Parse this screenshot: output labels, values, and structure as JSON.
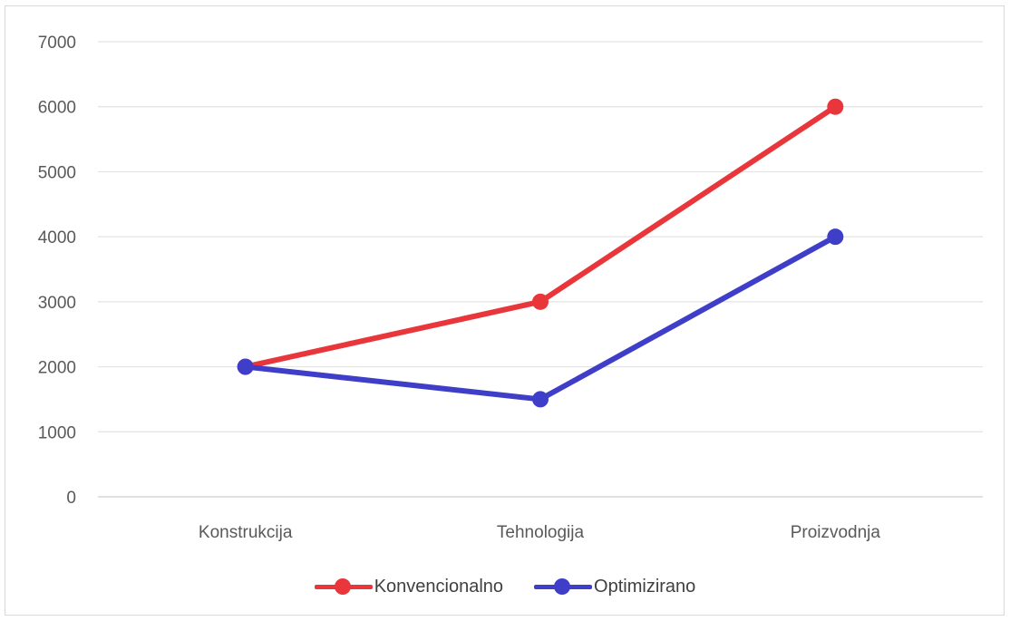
{
  "chart_data": {
    "type": "line",
    "categories": [
      "Konstrukcija",
      "Tehnologija",
      "Proizvodnja"
    ],
    "series": [
      {
        "name": "Konvencionalno",
        "values": [
          2000,
          3000,
          6000
        ],
        "color": "#e8363b"
      },
      {
        "name": "Optimizirano",
        "values": [
          2000,
          1500,
          4000
        ],
        "color": "#3e3ec8"
      }
    ],
    "ylim": [
      0,
      7000
    ],
    "yticks": [
      "0",
      "1000",
      "2000",
      "3000",
      "4000",
      "5000",
      "6000",
      "7000"
    ],
    "grid": true,
    "legend_position": "bottom"
  }
}
